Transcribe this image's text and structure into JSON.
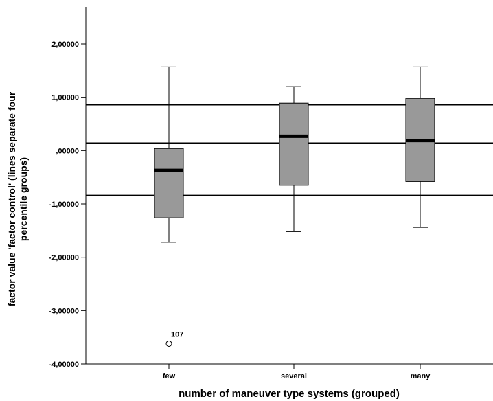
{
  "chart_data": {
    "type": "box",
    "xlabel": "number of maneuver type systems (grouped)",
    "ylabel_lines": [
      "factor value 'factor control' (lines separate four",
      "percentile groups)"
    ],
    "ylim": [
      -4,
      2.5
    ],
    "y_ticks": [
      2,
      1,
      0,
      -1,
      -2,
      -3,
      -4
    ],
    "y_tick_labels": [
      "2,00000",
      "1,00000",
      ",00000",
      "-1,00000",
      "-2,00000",
      "-3,00000",
      "-4,00000"
    ],
    "categories": [
      "few",
      "several",
      "many"
    ],
    "boxes": [
      {
        "category": "few",
        "min": -1.72,
        "q1": -1.26,
        "median": -0.37,
        "q3": 0.04,
        "max": 1.57
      },
      {
        "category": "several",
        "min": -1.52,
        "q1": -0.65,
        "median": 0.27,
        "q3": 0.89,
        "max": 1.2
      },
      {
        "category": "many",
        "min": -1.44,
        "q1": -0.58,
        "median": 0.19,
        "q3": 0.98,
        "max": 1.57
      }
    ],
    "outliers": [
      {
        "category": "few",
        "value": -3.62,
        "label": "107"
      }
    ],
    "reference_lines": [
      0.86,
      0.14,
      -0.84
    ],
    "colors": {
      "box_fill": "#999999",
      "line": "#000000",
      "background": "#ffffff"
    }
  }
}
